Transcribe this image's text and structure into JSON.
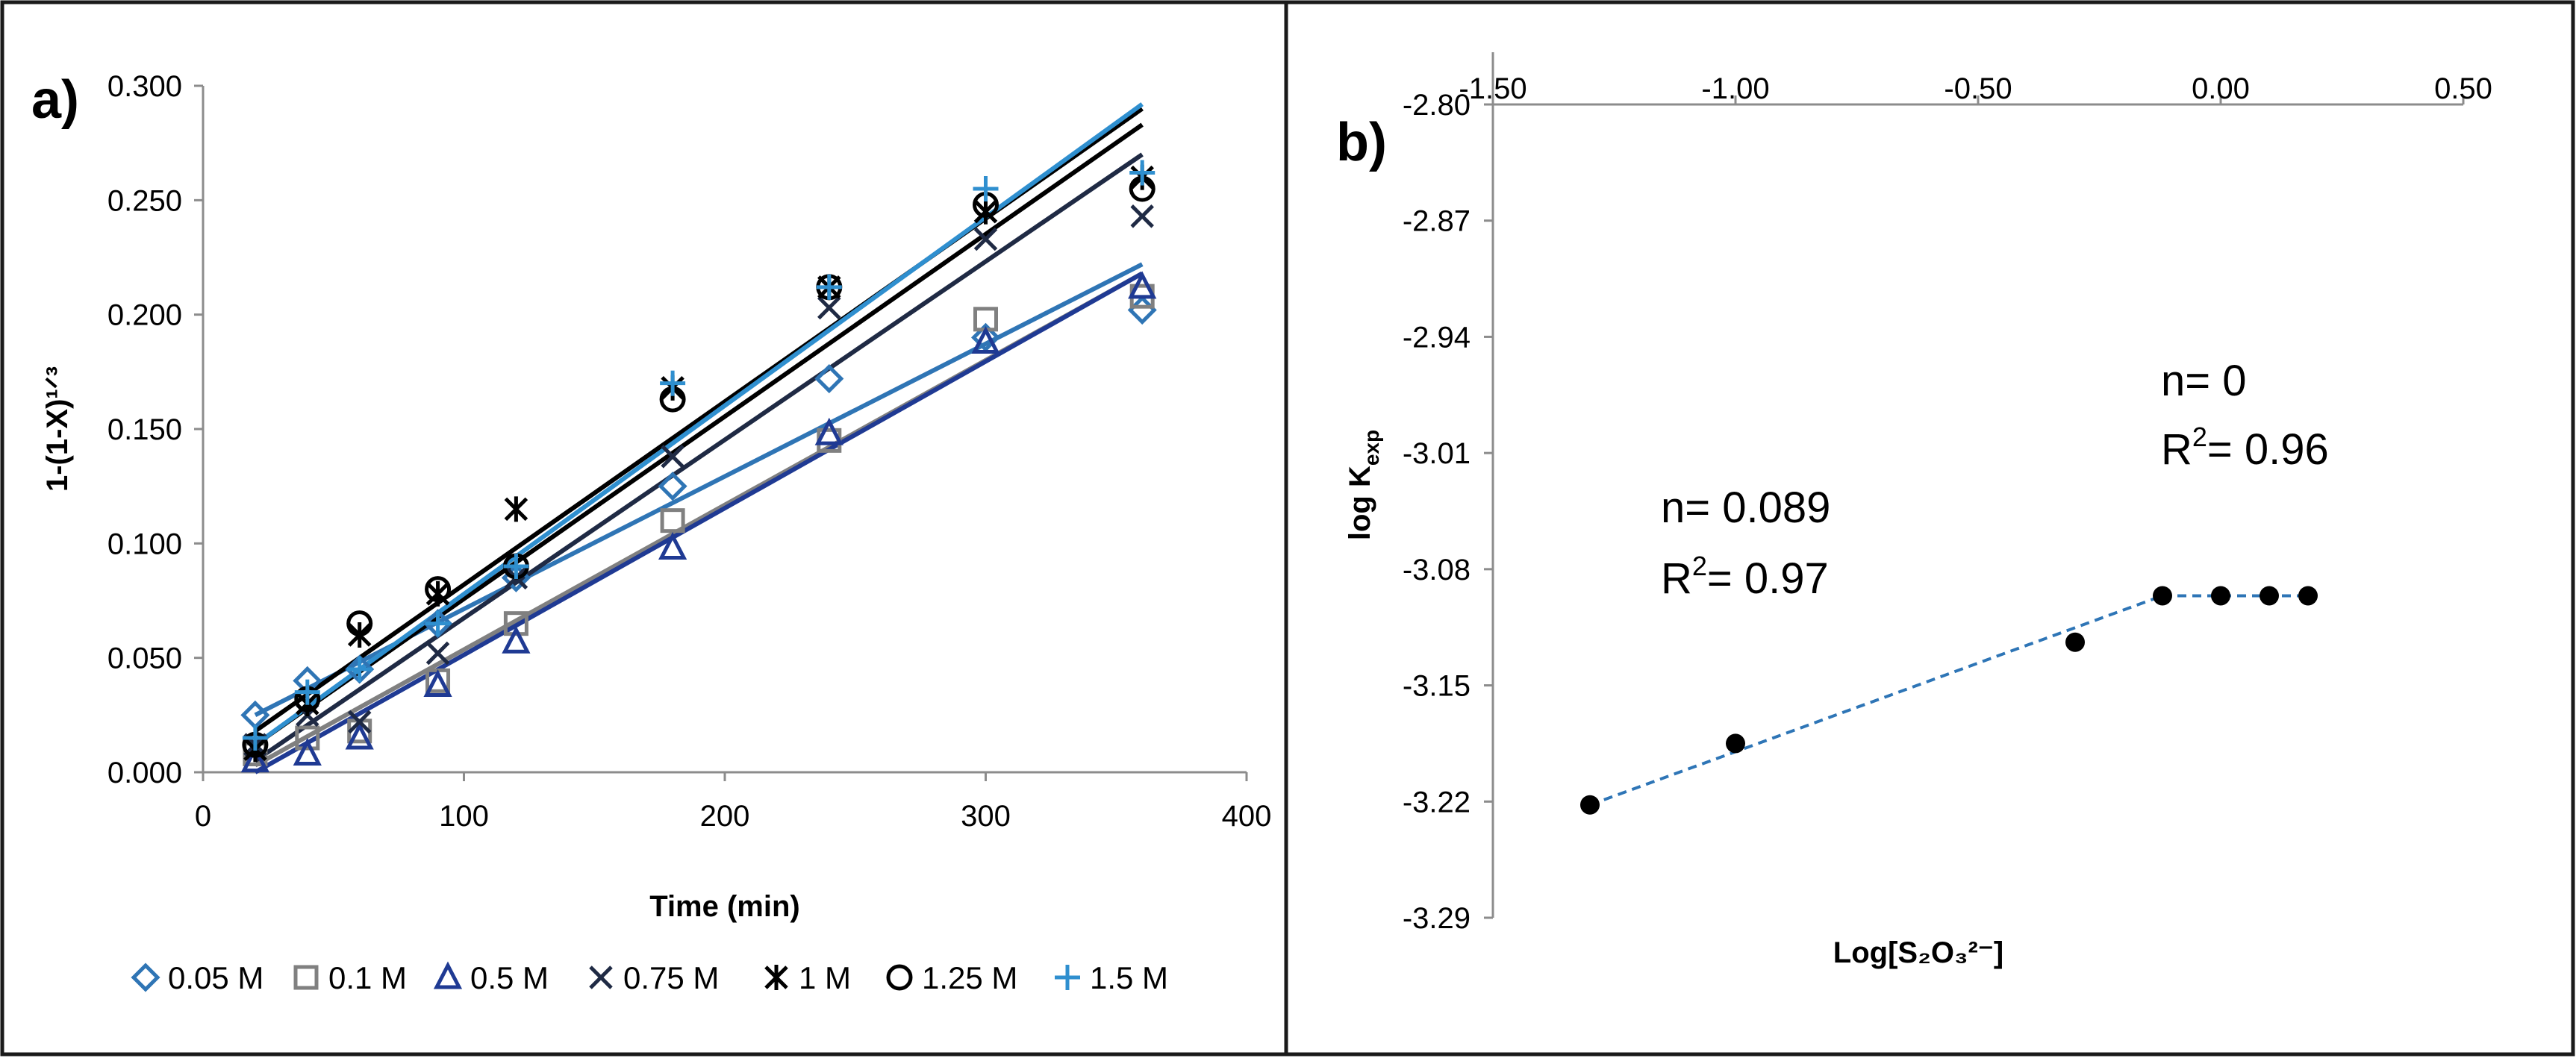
{
  "chart_data": [
    {
      "panel": "a)",
      "type": "scatter",
      "xlabel": "Time (min)",
      "ylabel": "1-(1-X)¹ᐟ³",
      "xlim": [
        0,
        400
      ],
      "ylim": [
        0,
        0.3
      ],
      "xticks": [
        "0",
        "100",
        "200",
        "300",
        "400"
      ],
      "yticks": [
        "0.000",
        "0.050",
        "0.100",
        "0.150",
        "0.200",
        "0.250",
        "0.300"
      ],
      "x": [
        20,
        40,
        60,
        90,
        120,
        180,
        240,
        300,
        360
      ],
      "series": [
        {
          "name": "0.05 M",
          "marker": "diamond",
          "color": "#2f75b5",
          "values": [
            0.025,
            0.04,
            0.045,
            0.065,
            0.085,
            0.125,
            0.172,
            0.19,
            0.202
          ],
          "fit": [
            [
              20,
              0.025
            ],
            [
              360,
              0.222
            ]
          ]
        },
        {
          "name": "0.1 M",
          "marker": "square",
          "color": "#808080",
          "values": [
            0.008,
            0.015,
            0.018,
            0.04,
            0.065,
            0.11,
            0.145,
            0.198,
            0.208
          ],
          "fit": [
            [
              20,
              0.003
            ],
            [
              360,
              0.218
            ]
          ]
        },
        {
          "name": "0.5 M",
          "marker": "triangle",
          "color": "#1f3a93",
          "values": [
            0.005,
            0.008,
            0.015,
            0.038,
            0.057,
            0.098,
            0.148,
            0.188,
            0.212
          ],
          "fit": [
            [
              20,
              0.0
            ],
            [
              360,
              0.218
            ]
          ]
        },
        {
          "name": "0.75 M",
          "marker": "x",
          "color": "#1f2a44",
          "values": [
            0.012,
            0.025,
            0.022,
            0.052,
            0.085,
            0.138,
            0.203,
            0.233,
            0.243
          ],
          "fit": [
            [
              20,
              0.005
            ],
            [
              360,
              0.27
            ]
          ]
        },
        {
          "name": "1 M",
          "marker": "xbar",
          "color": "#000000",
          "values": [
            0.01,
            0.03,
            0.06,
            0.078,
            0.115,
            0.168,
            0.212,
            0.245,
            0.26
          ],
          "fit": [
            [
              20,
              0.012
            ],
            [
              360,
              0.283
            ]
          ]
        },
        {
          "name": "1.25 M",
          "marker": "circle",
          "color": "#000000",
          "values": [
            0.012,
            0.032,
            0.065,
            0.08,
            0.09,
            0.163,
            0.212,
            0.248,
            0.255
          ],
          "fit": [
            [
              20,
              0.018
            ],
            [
              360,
              0.29
            ]
          ]
        },
        {
          "name": "1.5 M",
          "marker": "plus",
          "color": "#2f8fcf",
          "values": [
            0.015,
            0.035,
            0.045,
            0.065,
            0.09,
            0.17,
            0.212,
            0.255,
            0.262
          ],
          "fit": [
            [
              20,
              0.012
            ],
            [
              360,
              0.292
            ]
          ]
        }
      ]
    },
    {
      "panel": "b)",
      "type": "scatter",
      "xlabel": "Log[S₂O₃²⁻]",
      "ylabel": "log K",
      "ylabel_sub": "exp",
      "xlim": [
        -1.5,
        0.5
      ],
      "ylim": [
        -3.29,
        -2.8
      ],
      "xticks": [
        "-1.50",
        "-1.00",
        "-0.50",
        "0.00",
        "0.50"
      ],
      "yticks": [
        "-2.80",
        "-2.87",
        "-2.94",
        "-3.01",
        "-3.08",
        "-3.15",
        "-3.22",
        "-3.29"
      ],
      "points": [
        {
          "x": -1.3,
          "y": -3.222
        },
        {
          "x": -1.0,
          "y": -3.185
        },
        {
          "x": -0.3,
          "y": -3.124
        },
        {
          "x": -0.12,
          "y": -3.096
        },
        {
          "x": 0.0,
          "y": -3.096
        },
        {
          "x": 0.1,
          "y": -3.096
        },
        {
          "x": 0.18,
          "y": -3.096
        }
      ],
      "fits": [
        {
          "from": [
            -1.3,
            -3.222
          ],
          "to": [
            -0.12,
            -3.096
          ],
          "style": "dashed",
          "color": "#2e75b6"
        },
        {
          "from": [
            -0.12,
            -3.096
          ],
          "to": [
            0.18,
            -3.096
          ],
          "style": "dashed",
          "color": "#2e75b6"
        }
      ],
      "annotations": [
        {
          "n": "n= 0.089",
          "r2_prefix": "R",
          "r2_sup": "2",
          "r2_value": "= 0.97"
        },
        {
          "n": "n= 0",
          "r2_prefix": "R",
          "r2_sup": "2",
          "r2_value": "= 0.96"
        }
      ]
    }
  ]
}
